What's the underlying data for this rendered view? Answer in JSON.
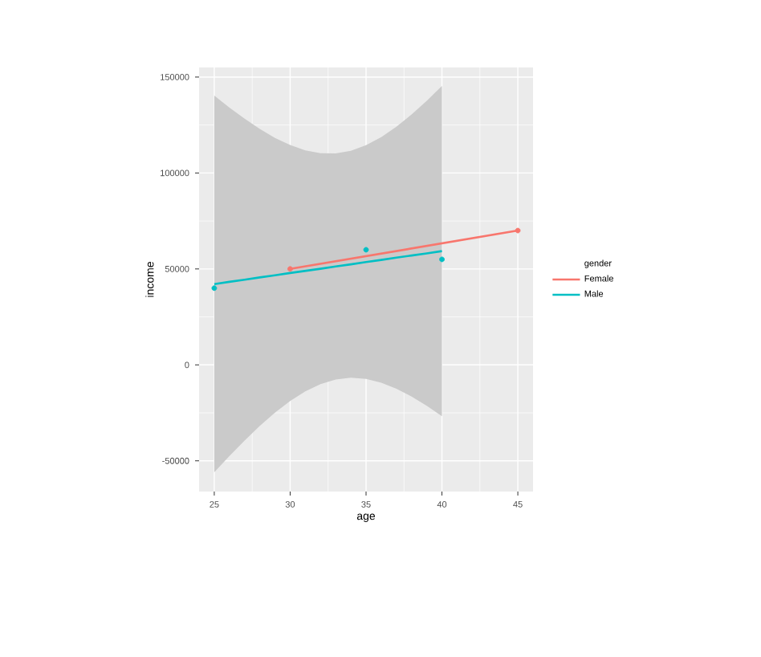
{
  "chart_data": {
    "type": "line",
    "xlabel": "age",
    "ylabel": "income",
    "legend_title": "gender",
    "legend": "right",
    "grid": true,
    "xlim": [
      24,
      46
    ],
    "ylim": [
      -66000,
      155000
    ],
    "xticks": [
      25,
      30,
      35,
      40,
      45
    ],
    "yticks": [
      -50000,
      0,
      50000,
      100000,
      150000
    ],
    "series": [
      {
        "type": "scatter",
        "marker": "circle",
        "color": "#f8766d",
        "x": [
          30,
          45
        ],
        "values": [
          50000,
          70000
        ]
      },
      {
        "type": "scatter",
        "marker": "circle",
        "color": "#00bfc4",
        "x": [
          25,
          35,
          40
        ],
        "values": [
          40000,
          60000,
          55000
        ]
      },
      {
        "name": "Female",
        "color": "#f8766d",
        "x": [
          30,
          45
        ],
        "values": [
          50000,
          70000
        ]
      },
      {
        "name": "Male",
        "color": "#00bfc4",
        "x": [
          25,
          26,
          27,
          28,
          29,
          30,
          31,
          32,
          33,
          34,
          35,
          36,
          37,
          38,
          39,
          40
        ],
        "values": [
          42100,
          43300,
          44400,
          45600,
          46700,
          47900,
          49000,
          50100,
          51300,
          52400,
          53600,
          54700,
          55900,
          57000,
          58100,
          59300
        ],
        "lower": [
          -56000,
          -47500,
          -39400,
          -31800,
          -24900,
          -18800,
          -13800,
          -10000,
          -7600,
          -6700,
          -7300,
          -9300,
          -12400,
          -16500,
          -21300,
          -26800
        ],
        "upper": [
          140300,
          134100,
          128300,
          123000,
          118300,
          114600,
          111800,
          110300,
          110200,
          111600,
          114500,
          118700,
          124100,
          130500,
          137600,
          145400
        ]
      }
    ]
  }
}
